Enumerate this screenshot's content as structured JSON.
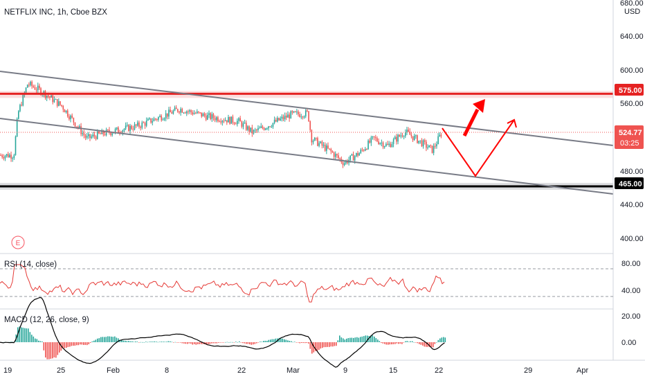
{
  "header": {
    "symbol_title": "NETFLIX INC, 1h, Cboe BZX",
    "currency": "USD",
    "earnings_marker": "E"
  },
  "colors": {
    "up": "#26a69a",
    "down": "#ef5350",
    "support": "#000000",
    "resistance": "#e52222",
    "channel": "#787b86",
    "rsi": "#e53935",
    "macd_line": "#000000"
  },
  "chart_data": [
    {
      "type": "candlestick",
      "title": "NETFLIX INC, 1h, Cboe BZX",
      "y_axis_ticks": [
        "680.00",
        "640.00",
        "600.00",
        "560.00",
        "480.00",
        "440.00",
        "400.00"
      ],
      "ylim": [
        382,
        684
      ],
      "x_axis_ticks": [
        "19",
        "25",
        "Feb",
        "8",
        "22",
        "Mar",
        "9",
        "15",
        "22",
        "29",
        "Apr"
      ],
      "last_price": "524.77",
      "countdown": "03:25",
      "levels": [
        {
          "name": "resistance",
          "value": "575.00"
        },
        {
          "name": "support",
          "value": "465.00"
        }
      ],
      "channel_lines": "descending",
      "projection": "down to channel bottom then up toward resistance",
      "bars_approx": 300
    },
    {
      "type": "line",
      "title": "RSI (14, close)",
      "y_axis_ticks": [
        "80.00",
        "40.00"
      ],
      "ylim": [
        24,
        88
      ],
      "bands": [
        70,
        30
      ]
    },
    {
      "type": "histogram",
      "title": "MACD (12, 26, close, 9)",
      "y_axis_ticks": [
        "20.00",
        "0.00"
      ],
      "ylim": [
        -14,
        24
      ]
    }
  ]
}
